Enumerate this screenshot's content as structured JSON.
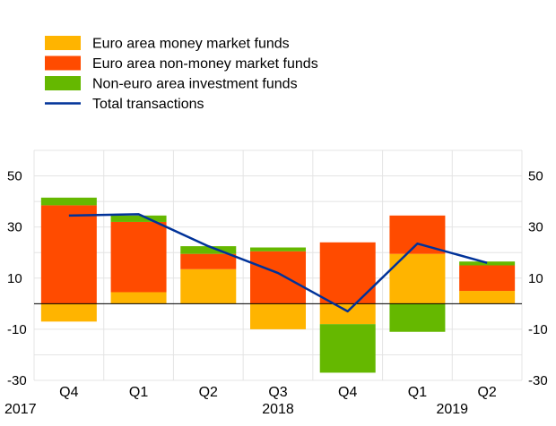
{
  "chart_data": {
    "type": "bar",
    "stacked": true,
    "categories": [
      "Q4",
      "Q1",
      "Q2",
      "Q3",
      "Q4",
      "Q1",
      "Q2"
    ],
    "year_labels": [
      "2017",
      "2018",
      "2019"
    ],
    "ylim": [
      -30,
      60
    ],
    "yticks": [
      50,
      30,
      10,
      -10,
      -30
    ],
    "grid": true,
    "series": [
      {
        "name": "Euro area money market funds",
        "kind": "bar",
        "color": "#FFB400",
        "values": [
          -7,
          4.5,
          13.5,
          -10,
          -8,
          19.5,
          5
        ]
      },
      {
        "name": "Euro area non-money market funds",
        "kind": "bar",
        "color": "#FF4B00",
        "values": [
          38.5,
          27.5,
          6,
          20.5,
          24,
          15,
          10
        ]
      },
      {
        "name": "Non-euro area investment funds",
        "kind": "bar",
        "color": "#65B800",
        "values": [
          3,
          2.5,
          3,
          1.5,
          -19,
          -11,
          1.5
        ]
      },
      {
        "name": "Total transactions",
        "kind": "line",
        "color": "#003299",
        "values": [
          34.5,
          35,
          22.5,
          12,
          -3,
          23.5,
          16
        ]
      }
    ]
  }
}
